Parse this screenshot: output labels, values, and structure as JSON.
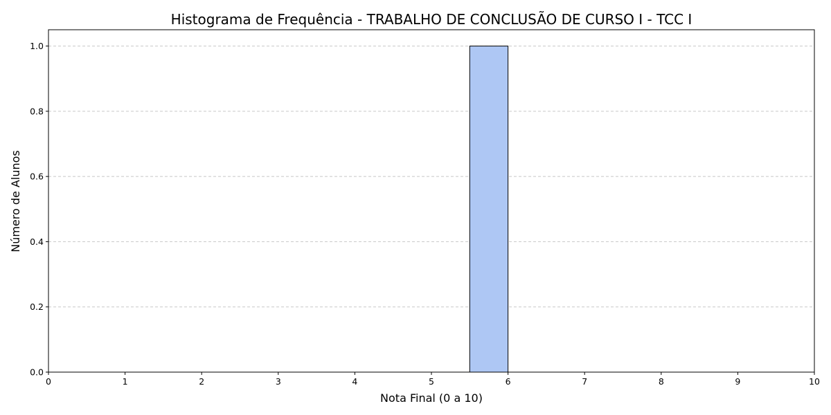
{
  "chart_data": {
    "type": "bar",
    "title": "Histograma de Frequência - TRABALHO DE CONCLUSÃO DE CURSO I - TCC I",
    "xlabel": "Nota Final (0 a 10)",
    "ylabel": "Número de Alunos",
    "xlim": [
      0,
      10
    ],
    "ylim": [
      0,
      1.05
    ],
    "x_ticks": [
      0,
      1,
      2,
      3,
      4,
      5,
      6,
      7,
      8,
      9,
      10
    ],
    "x_tick_labels": [
      "0",
      "1",
      "2",
      "3",
      "4",
      "5",
      "6",
      "7",
      "8",
      "9",
      "10"
    ],
    "y_ticks": [
      0,
      0.2,
      0.4,
      0.6,
      0.8,
      1.0
    ],
    "y_tick_labels": [
      "0.0",
      "0.2",
      "0.4",
      "0.6",
      "0.8",
      "1.0"
    ],
    "bins": [
      {
        "start": 5.5,
        "end": 6.0,
        "count": 1
      }
    ],
    "grid": "horizontal dashed",
    "colors": {
      "bar_fill": "#aec7f4",
      "bar_edge": "#000000",
      "grid": "#c8c8c8",
      "axis": "#000000"
    }
  }
}
